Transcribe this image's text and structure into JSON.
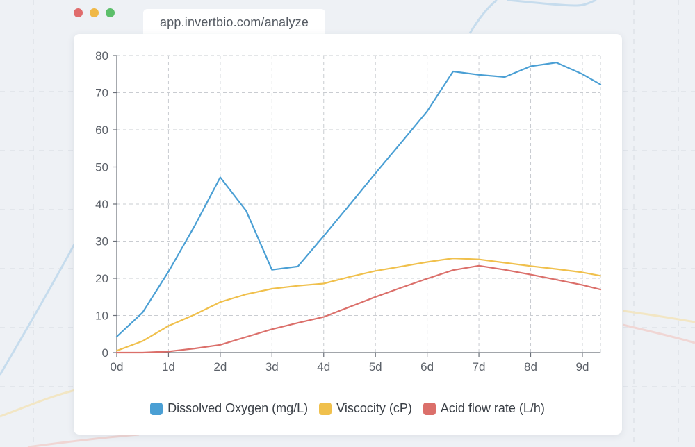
{
  "window": {
    "url": "app.invertbio.com/analyze",
    "controls": [
      {
        "name": "close",
        "color": "#e06c6c"
      },
      {
        "name": "minimize",
        "color": "#f0b846"
      },
      {
        "name": "zoom",
        "color": "#5cbf6a"
      }
    ]
  },
  "chart_data": {
    "type": "line",
    "title": "",
    "xlabel": "",
    "ylabel": "",
    "x": [
      0,
      0.5,
      1,
      1.5,
      2,
      2.5,
      3,
      3.5,
      4,
      4.5,
      5,
      5.5,
      6,
      6.5,
      7,
      7.5,
      8,
      8.5,
      9,
      9.35
    ],
    "xlim": [
      0,
      9.35
    ],
    "ylim": [
      0,
      80
    ],
    "x_ticks": [
      {
        "value": 0,
        "label": "0d"
      },
      {
        "value": 1,
        "label": "1d"
      },
      {
        "value": 2,
        "label": "2d"
      },
      {
        "value": 3,
        "label": "3d"
      },
      {
        "value": 4,
        "label": "4d"
      },
      {
        "value": 5,
        "label": "5d"
      },
      {
        "value": 6,
        "label": "6d"
      },
      {
        "value": 7,
        "label": "7d"
      },
      {
        "value": 8,
        "label": "8d"
      },
      {
        "value": 9,
        "label": "9d"
      }
    ],
    "y_ticks": [
      {
        "value": 0,
        "label": "0"
      },
      {
        "value": 10,
        "label": "10"
      },
      {
        "value": 20,
        "label": "20"
      },
      {
        "value": 30,
        "label": "30"
      },
      {
        "value": 40,
        "label": "40"
      },
      {
        "value": 50,
        "label": "50"
      },
      {
        "value": 60,
        "label": "60"
      },
      {
        "value": 70,
        "label": "70"
      },
      {
        "value": 80,
        "label": "80"
      }
    ],
    "grid": true,
    "legend_position": "bottom-center",
    "series": [
      {
        "name": "Dissolved Oxygen (mg/L)",
        "color": "#4a9fd4",
        "values": [
          4.3,
          10.8,
          21.8,
          34.0,
          47.2,
          38.2,
          22.3,
          23.2,
          31.4,
          39.8,
          48.3,
          56.6,
          65.0,
          75.7,
          74.8,
          74.2,
          77.1,
          78.1,
          75.0,
          72.2
        ]
      },
      {
        "name": "Viscocity (cP)",
        "color": "#f0c04c",
        "values": [
          0.5,
          3.1,
          7.2,
          10.2,
          13.6,
          15.7,
          17.2,
          18.0,
          18.6,
          20.4,
          22.0,
          23.2,
          24.4,
          25.4,
          25.1,
          24.2,
          23.3,
          22.5,
          21.6,
          20.7
        ]
      },
      {
        "name": "Acid flow rate (L/h)",
        "color": "#db6f6a",
        "values": [
          0,
          0,
          0.3,
          1.1,
          2.1,
          4.2,
          6.3,
          8.0,
          9.6,
          12.3,
          15.0,
          17.5,
          19.9,
          22.2,
          23.4,
          22.3,
          21.0,
          19.6,
          18.2,
          17.0
        ]
      }
    ]
  }
}
